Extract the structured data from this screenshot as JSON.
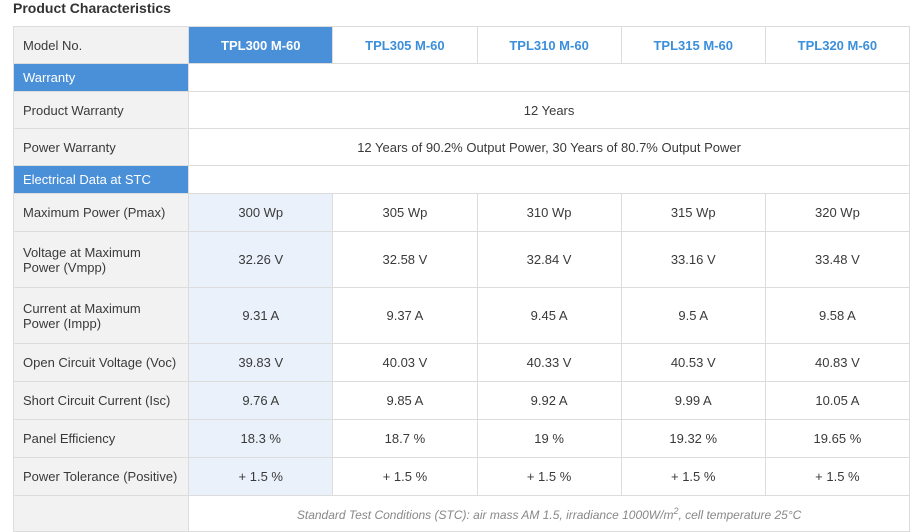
{
  "page_title": "Product Characteristics",
  "header": {
    "label": "Model No.",
    "models": [
      "TPL300 M-60",
      "TPL305 M-60",
      "TPL310 M-60",
      "TPL315 M-60",
      "TPL320 M-60"
    ],
    "selected_model": "TPL300 M-60"
  },
  "warranty": {
    "section_label": "Warranty",
    "product_warranty_label": "Product Warranty",
    "product_warranty_value": "12 Years",
    "power_warranty_label": "Power Warranty",
    "power_warranty_value": "12 Years of 90.2% Output Power, 30 Years of 80.7% Output Power"
  },
  "electrical": {
    "section_label": "Electrical Data at STC",
    "rows": [
      {
        "label": "Maximum Power (Pmax)",
        "values": [
          "300 Wp",
          "305 Wp",
          "310 Wp",
          "315 Wp",
          "320 Wp"
        ]
      },
      {
        "label": "Voltage at Maximum Power (Vmpp)",
        "values": [
          "32.26 V",
          "32.58 V",
          "32.84 V",
          "33.16 V",
          "33.48 V"
        ]
      },
      {
        "label": "Current at Maximum Power (Impp)",
        "values": [
          "9.31 A",
          "9.37 A",
          "9.45 A",
          "9.5 A",
          "9.58 A"
        ]
      },
      {
        "label": "Open Circuit Voltage (Voc)",
        "values": [
          "39.83 V",
          "40.03 V",
          "40.33 V",
          "40.53 V",
          "40.83 V"
        ]
      },
      {
        "label": "Short Circuit Current (Isc)",
        "values": [
          "9.76 A",
          "9.85 A",
          "9.92 A",
          "9.99 A",
          "10.05 A"
        ]
      },
      {
        "label": "Panel Efficiency",
        "values": [
          "18.3 %",
          "18.7 %",
          "19 %",
          "19.32 %",
          "19.65 %"
        ]
      },
      {
        "label": "Power Tolerance (Positive)",
        "values": [
          "+ 1.5 %",
          "+ 1.5 %",
          "+ 1.5 %",
          "+ 1.5 %",
          "+ 1.5 %"
        ]
      }
    ]
  },
  "footnote": {
    "text_before": "Standard Test Conditions (STC): air mass AM 1.5, irradiance 1000W/m",
    "superscript": "2",
    "text_after": ", cell temperature 25°C"
  },
  "colors": {
    "accent": "#4a90d9",
    "accent_text": "#3b8fdb",
    "highlight_column": "#eaf1fb",
    "label_background": "#f2f2f2"
  }
}
